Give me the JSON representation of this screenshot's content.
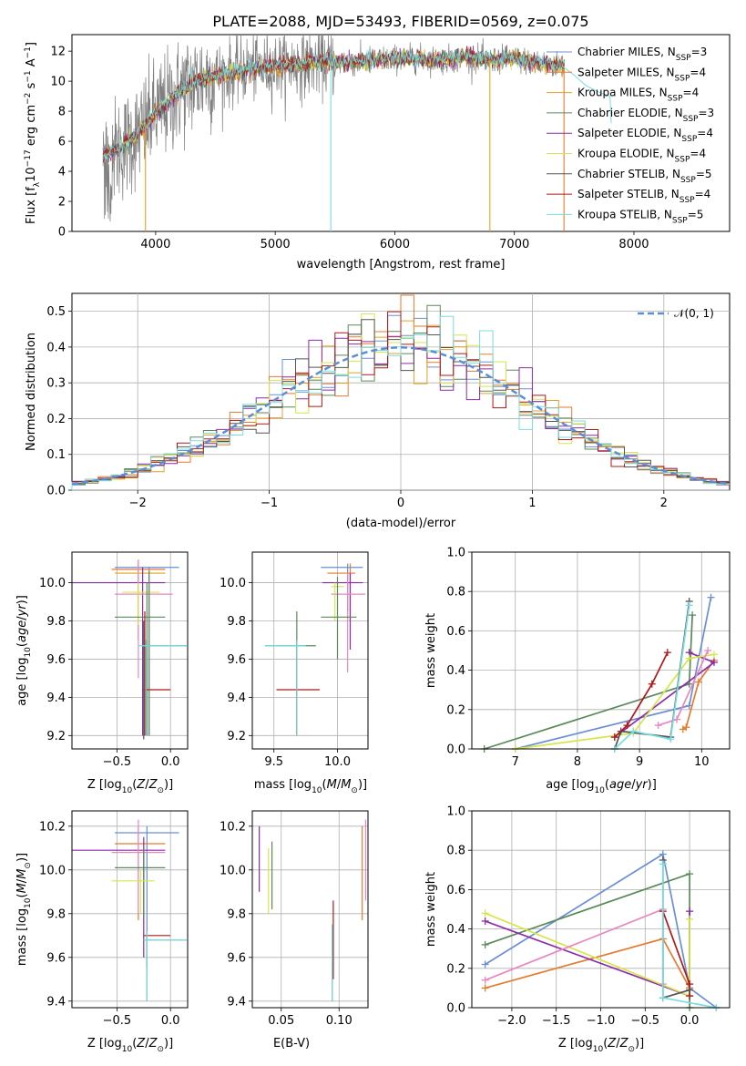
{
  "title": "PLATE=2088, MJD=53493, FIBERID=0569, z=0.075",
  "colors": {
    "Chabrier MILES": "#6a8fd8",
    "Salpeter MILES": "#e67a2e",
    "Kroupa MILES": "#e6a020",
    "Chabrier ELODIE": "#5a8a5a",
    "Salpeter ELODIE": "#8e2aa8",
    "Kroupa ELODIE": "#d6e64a",
    "Chabrier STELIB": "#555555",
    "Salpeter STELIB": "#b01818",
    "Kroupa STELIB": "#78dde0",
    "Pink": "#e887c0",
    "Normal": "#5a8fd8"
  },
  "chart_data": [
    {
      "type": "line",
      "id": "spectrum",
      "xlabel": "wavelength [Angstrom, rest frame]",
      "ylabel": "Flux [fλ10⁻¹⁷ erg cm⁻² s⁻¹ A⁻¹]",
      "xlim": [
        3300,
        8800
      ],
      "ylim": [
        0,
        13.1
      ],
      "xticks": [
        4000,
        5000,
        6000,
        7000,
        8000
      ],
      "yticks": [
        0,
        2,
        4,
        6,
        8,
        10,
        12
      ],
      "grid": false,
      "legend_position": "top-right",
      "legend": [
        "Chabrier MILES, N_SSP=3",
        "Salpeter MILES, N_SSP=4",
        "Kroupa MILES, N_SSP=4",
        "Chabrier ELODIE, N_SSP=3",
        "Salpeter ELODIE, N_SSP=4",
        "Kroupa ELODIE, N_SSP=4",
        "Chabrier STELIB, N_SSP=5",
        "Salpeter STELIB, N_SSP=4",
        "Kroupa STELIB, N_SSP=5"
      ],
      "legend_colors": [
        "#6a8fd8",
        "#e67a2e",
        "#e6a020",
        "#5a8a5a",
        "#8e2aa8",
        "#d6e64a",
        "#555555",
        "#b01818",
        "#78dde0"
      ],
      "data_envelope": {
        "x": [
          3560,
          3600,
          3700,
          3800,
          3900,
          4000,
          4100,
          4200,
          4300,
          4400,
          4500,
          4600,
          4700,
          4800,
          4900,
          5000,
          5200,
          5400,
          5600,
          5800,
          6000,
          6200,
          6400,
          6600,
          6800,
          7000,
          7200,
          7400
        ],
        "y": [
          4.9,
          5.2,
          5.5,
          6.1,
          6.9,
          7.9,
          8.5,
          9.3,
          9.8,
          10.2,
          10.4,
          10.5,
          10.7,
          10.9,
          10.9,
          11.0,
          11.1,
          11.3,
          11.2,
          11.4,
          11.5,
          11.5,
          11.4,
          11.6,
          11.4,
          11.5,
          11.2,
          11.0
        ]
      },
      "model_end": {
        "x": [
          7400,
          7500,
          7600,
          7700,
          7800
        ],
        "y": [
          11.0,
          10.4,
          9.7,
          9.3,
          9.0
        ]
      }
    },
    {
      "type": "bar",
      "id": "residuals",
      "xlabel": "(data-model)/error",
      "ylabel": "Normed distribution",
      "xlim": [
        -2.5,
        2.5
      ],
      "ylim": [
        0,
        0.55
      ],
      "xticks": [
        -2,
        -1,
        0,
        1,
        2
      ],
      "xtick_labels": [
        "−2",
        "−1",
        "0",
        "1",
        "2"
      ],
      "yticks": [
        0.0,
        0.1,
        0.2,
        0.3,
        0.4,
        0.5
      ],
      "grid": true,
      "legend": [
        "𝒩(0, 1)"
      ],
      "legend_position": "top-right",
      "bins": {
        "start": -2.5,
        "width": 0.1
      }
    },
    {
      "type": "scatter",
      "id": "age_vs_Z",
      "xlabel": "Z [log₁₀(Z/Z⊙)]",
      "ylabel": "age  [log₁₀(age/yr)]",
      "xlim": [
        -0.92,
        0.16
      ],
      "ylim": [
        9.13,
        10.16
      ],
      "xticks": [
        -0.5,
        0.0
      ],
      "xtick_labels": [
        "−0.5",
        "0.0"
      ],
      "yticks": [
        9.2,
        9.4,
        9.6,
        9.8,
        10.0
      ],
      "yticks_labels": [
        "9.2",
        "9.4",
        "9.6",
        "9.8",
        "10.0"
      ],
      "grid": true,
      "errorbars": [
        {
          "c": "#6a8fd8",
          "x": -0.2,
          "xe": [
            -0.52,
            0.08
          ],
          "y": 10.08,
          "ye": [
            9.2,
            10.08
          ]
        },
        {
          "c": "#e67a2e",
          "x": -0.3,
          "xe": [
            -0.55,
            -0.05
          ],
          "y": 10.07,
          "ye": [
            9.7,
            10.12
          ]
        },
        {
          "c": "#e6a020",
          "x": -0.3,
          "xe": [
            -0.52,
            -0.05
          ],
          "y": 10.05,
          "ye": [
            9.78,
            10.1
          ]
        },
        {
          "c": "#8e2aa8",
          "x": -0.26,
          "xe": [
            -0.92,
            -0.05
          ],
          "y": 10.0,
          "ye": [
            9.2,
            10.08
          ]
        },
        {
          "c": "#e887c0",
          "x": -0.3,
          "xe": [
            -0.52,
            0.02
          ],
          "y": 9.94,
          "ye": [
            9.5,
            10.12
          ]
        },
        {
          "c": "#d6e64a",
          "x": -0.3,
          "xe": [
            -0.45,
            -0.1
          ],
          "y": 9.95,
          "ye": [
            9.78,
            10.0
          ]
        },
        {
          "c": "#5a8a5a",
          "x": -0.2,
          "xe": [
            -0.52,
            -0.05
          ],
          "y": 9.82,
          "ye": [
            9.2,
            10.06
          ]
        },
        {
          "c": "#5a8a5a",
          "x": -0.22,
          "xe": [
            -0.25,
            0.15
          ],
          "y": 9.67,
          "ye": [
            9.2,
            10.0
          ]
        },
        {
          "c": "#b01818",
          "x": -0.24,
          "xe": [
            -0.26,
            0.0
          ],
          "y": 9.44,
          "ye": [
            9.2,
            9.85
          ]
        },
        {
          "c": "#555555",
          "x": -0.25,
          "xe": [
            -0.25,
            -0.25
          ],
          "y": 9.68,
          "ye": [
            9.18,
            9.8
          ]
        },
        {
          "c": "#78dde0",
          "x": -0.23,
          "xe": [
            -0.3,
            0.15
          ],
          "y": 9.67,
          "ye": [
            9.2,
            9.7
          ]
        }
      ]
    },
    {
      "type": "scatter",
      "id": "age_vs_mass",
      "xlabel": "mass [log₁₀(M/M⊙)]",
      "ylabel": "",
      "xlim": [
        9.33,
        10.24
      ],
      "ylim": [
        9.13,
        10.16
      ],
      "xticks": [
        9.5,
        10.0
      ],
      "xtick_labels": [
        "9.5",
        "10.0"
      ],
      "yticks": [
        9.2,
        9.4,
        9.6,
        9.8,
        10.0
      ],
      "yticks_labels": [
        "9.2",
        "9.4",
        "9.6",
        "9.8",
        "10.0"
      ],
      "grid": true,
      "errorbars": [
        {
          "c": "#6a8fd8",
          "x": 10.08,
          "xe": [
            9.87,
            10.2
          ],
          "y": 10.08,
          "ye": [
            9.85,
            10.1
          ]
        },
        {
          "c": "#e67a2e",
          "x": 10.1,
          "xe": [
            9.92,
            10.14
          ],
          "y": 10.05,
          "ye": [
            9.8,
            10.1
          ]
        },
        {
          "c": "#8e2aa8",
          "x": 10.1,
          "xe": [
            9.88,
            10.2
          ],
          "y": 10.0,
          "ye": [
            9.65,
            10.05
          ]
        },
        {
          "c": "#e887c0",
          "x": 10.08,
          "xe": [
            9.95,
            10.22
          ],
          "y": 9.94,
          "ye": [
            9.53,
            10.05
          ]
        },
        {
          "c": "#d6e64a",
          "x": 9.98,
          "xe": [
            9.95,
            10.05
          ],
          "y": 9.98,
          "ye": [
            9.8,
            10.0
          ]
        },
        {
          "c": "#5a8a5a",
          "x": 10.0,
          "xe": [
            9.87,
            10.15
          ],
          "y": 9.82,
          "ye": [
            9.6,
            10.03
          ]
        },
        {
          "c": "#5a8a5a",
          "x": 9.68,
          "xe": [
            9.43,
            9.83
          ],
          "y": 9.67,
          "ye": [
            9.2,
            9.85
          ]
        },
        {
          "c": "#b01818",
          "x": 9.68,
          "xe": [
            9.52,
            9.86
          ],
          "y": 9.44,
          "ye": [
            9.2,
            9.7
          ]
        },
        {
          "c": "#78dde0",
          "x": 9.68,
          "xe": [
            9.43,
            9.75
          ],
          "y": 9.67,
          "ye": [
            9.2,
            9.7
          ]
        }
      ]
    },
    {
      "type": "line",
      "id": "mass_weight_vs_age",
      "xlabel": "age  [log₁₀(age/yr)]",
      "ylabel": "mass weight",
      "xlim": [
        6.3,
        10.45
      ],
      "ylim": [
        0,
        1.0
      ],
      "xticks": [
        7,
        8,
        9,
        10
      ],
      "yticks": [
        0.0,
        0.2,
        0.4,
        0.6,
        0.8,
        1.0
      ],
      "grid": true,
      "series": [
        {
          "c": "#6a8fd8",
          "x": [
            10.15,
            9.8,
            7.0
          ],
          "y": [
            0.77,
            0.22,
            0.0
          ]
        },
        {
          "c": "#e67a2e",
          "x": [
            10.2,
            9.95,
            9.75,
            9.7
          ],
          "y": [
            0.45,
            0.34,
            0.11,
            0.1
          ]
        },
        {
          "c": "#5a8a5a",
          "x": [
            9.85,
            9.8,
            6.5
          ],
          "y": [
            0.68,
            0.33,
            0.0
          ]
        },
        {
          "c": "#8e2aa8",
          "x": [
            9.8,
            10.2,
            8.6
          ],
          "y": [
            0.49,
            0.44,
            0.06
          ]
        },
        {
          "c": "#d6e64a",
          "x": [
            10.2,
            9.8,
            8.9,
            7.0
          ],
          "y": [
            0.48,
            0.46,
            0.08,
            0.0
          ]
        },
        {
          "c": "#e887c0",
          "x": [
            10.1,
            9.6,
            9.3
          ],
          "y": [
            0.5,
            0.15,
            0.12
          ]
        },
        {
          "c": "#555555",
          "x": [
            9.8,
            9.5,
            8.7,
            8.6
          ],
          "y": [
            0.75,
            0.06,
            0.09,
            0.0
          ]
        },
        {
          "c": "#b01818",
          "x": [
            9.45,
            9.2,
            8.8,
            8.6
          ],
          "y": [
            0.49,
            0.33,
            0.12,
            0.06
          ]
        },
        {
          "c": "#78dde0",
          "x": [
            9.8,
            9.5,
            8.9,
            8.6
          ],
          "y": [
            0.73,
            0.05,
            0.09,
            0.0
          ]
        }
      ]
    },
    {
      "type": "scatter",
      "id": "mass_vs_Z",
      "xlabel": "Z [log₁₀(Z/Z⊙)]",
      "ylabel": "mass [log₁₀(M/M⊙)]",
      "xlim": [
        -0.92,
        0.16
      ],
      "ylim": [
        9.37,
        10.27
      ],
      "xticks": [
        -0.5,
        0.0
      ],
      "xtick_labels": [
        "−0.5",
        "0.0"
      ],
      "yticks": [
        9.4,
        9.6,
        9.8,
        10.0,
        10.2
      ],
      "yticks_labels": [
        "9.4",
        "9.6",
        "9.8",
        "10.0",
        "10.2"
      ],
      "grid": true,
      "errorbars": [
        {
          "c": "#6a8fd8",
          "x": -0.22,
          "xe": [
            -0.52,
            0.08
          ],
          "y": 10.17,
          "ye": [
            9.6,
            10.2
          ]
        },
        {
          "c": "#e67a2e",
          "x": -0.3,
          "xe": [
            -0.52,
            -0.05
          ],
          "y": 10.12,
          "ye": [
            9.77,
            10.2
          ]
        },
        {
          "c": "#8e2aa8",
          "x": -0.25,
          "xe": [
            -0.92,
            -0.05
          ],
          "y": 10.09,
          "ye": [
            9.6,
            10.15
          ]
        },
        {
          "c": "#e887c0",
          "x": -0.3,
          "xe": [
            -0.55,
            -0.05
          ],
          "y": 10.08,
          "ye": [
            9.8,
            10.23
          ]
        },
        {
          "c": "#5a8a5a",
          "x": -0.25,
          "xe": [
            -0.52,
            -0.05
          ],
          "y": 10.01,
          "ye": [
            9.78,
            10.1
          ]
        },
        {
          "c": "#d6e64a",
          "x": -0.28,
          "xe": [
            -0.55,
            -0.15
          ],
          "y": 9.95,
          "ye": [
            9.8,
            10.0
          ]
        },
        {
          "c": "#b01818",
          "x": -0.22,
          "xe": [
            -0.25,
            0.0
          ],
          "y": 9.7,
          "ye": [
            9.55,
            9.72
          ]
        },
        {
          "c": "#5a8a5a",
          "x": -0.22,
          "xe": [
            -0.25,
            0.15
          ],
          "y": 9.68,
          "ye": [
            9.4,
            9.72
          ]
        },
        {
          "c": "#78dde0",
          "x": -0.22,
          "xe": [
            -0.25,
            0.15
          ],
          "y": 9.68,
          "ye": [
            9.4,
            9.72
          ]
        }
      ]
    },
    {
      "type": "scatter",
      "id": "mass_vs_EBV",
      "xlabel": "E(B-V)",
      "ylabel": "",
      "xlim": [
        0.025,
        0.125
      ],
      "ylim": [
        9.37,
        10.27
      ],
      "xticks": [
        0.05,
        0.1
      ],
      "xtick_labels": [
        "0.05",
        "0.10"
      ],
      "yticks": [
        9.4,
        9.6,
        9.8,
        10.0,
        10.2
      ],
      "yticks_labels": [
        "9.4",
        "9.6",
        "9.8",
        "10.0",
        "10.2"
      ],
      "grid": true,
      "errorbars": [
        {
          "c": "#8e2aa8",
          "x": 0.031,
          "y": 10.05,
          "ye": [
            9.9,
            10.2
          ]
        },
        {
          "c": "#d6e64a",
          "x": 0.039,
          "y": 9.95,
          "ye": [
            9.8,
            10.1
          ]
        },
        {
          "c": "#5a8a5a",
          "x": 0.042,
          "y": 9.98,
          "ye": [
            9.82,
            10.13
          ]
        },
        {
          "c": "#b01818",
          "x": 0.095,
          "y": 9.72,
          "ye": [
            9.5,
            9.86
          ]
        },
        {
          "c": "#555555",
          "x": 0.094,
          "y": 9.6,
          "ye": [
            9.4,
            9.75
          ]
        },
        {
          "c": "#78dde0",
          "x": 0.094,
          "y": 9.55,
          "ye": [
            9.4,
            9.75
          ]
        },
        {
          "c": "#e67a2e",
          "x": 0.12,
          "y": 10.0,
          "ye": [
            9.77,
            10.2
          ]
        },
        {
          "c": "#e887c0",
          "x": 0.123,
          "y": 10.05,
          "ye": [
            9.86,
            10.23
          ]
        }
      ]
    },
    {
      "type": "line",
      "id": "mass_weight_vs_Z",
      "xlabel": "Z [log₁₀(Z/Z⊙)]",
      "ylabel": "mass weight",
      "xlim": [
        -2.45,
        0.45
      ],
      "ylim": [
        0,
        1.0
      ],
      "xticks": [
        -2.0,
        -1.5,
        -1.0,
        -0.5,
        0.0
      ],
      "xtick_labels": [
        "−2.0",
        "−1.5",
        "−1.0",
        "−0.5",
        "0.0"
      ],
      "yticks": [
        0.0,
        0.2,
        0.4,
        0.6,
        0.8,
        1.0
      ],
      "grid": true,
      "series": [
        {
          "c": "#6a8fd8",
          "x": [
            -2.3,
            -0.3,
            0.0,
            0.3
          ],
          "y": [
            0.22,
            0.78,
            0.1,
            0.0
          ]
        },
        {
          "c": "#e67a2e",
          "x": [
            -2.3,
            -0.3,
            0.0
          ],
          "y": [
            0.1,
            0.35,
            0.1
          ]
        },
        {
          "c": "#5a8a5a",
          "x": [
            -2.3,
            0.0,
            0.0
          ],
          "y": [
            0.32,
            0.68,
            0.0
          ]
        },
        {
          "c": "#8e2aa8",
          "x": [
            -2.3,
            0.0,
            0.0
          ],
          "y": [
            0.44,
            0.06,
            0.49
          ]
        },
        {
          "c": "#d6e64a",
          "x": [
            -2.3,
            0.0,
            0.0
          ],
          "y": [
            0.48,
            0.06,
            0.45
          ]
        },
        {
          "c": "#e887c0",
          "x": [
            -2.3,
            -0.3,
            -0.3
          ],
          "y": [
            0.14,
            0.5,
            0.12
          ]
        },
        {
          "c": "#b01818",
          "x": [
            -0.3,
            0.0,
            0.0
          ],
          "y": [
            0.49,
            0.12,
            0.06
          ]
        },
        {
          "c": "#555555",
          "x": [
            -0.3,
            -0.3,
            0.0
          ],
          "y": [
            0.75,
            0.05,
            0.09
          ]
        },
        {
          "c": "#78dde0",
          "x": [
            -0.3,
            -0.3,
            0.3
          ],
          "y": [
            0.73,
            0.05,
            0.0
          ]
        }
      ]
    }
  ]
}
